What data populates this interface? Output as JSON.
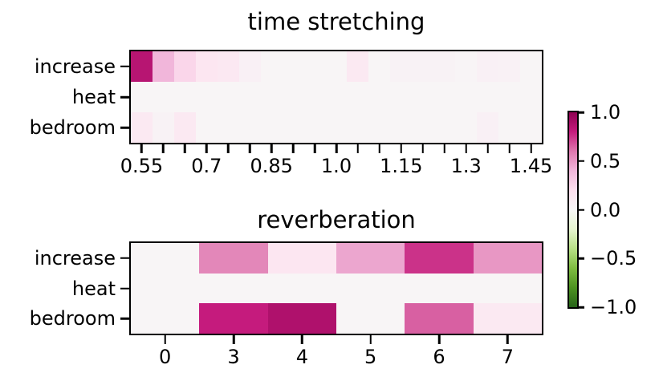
{
  "figure": {
    "background": "#ffffff"
  },
  "colormap": {
    "name": "PiYG_r",
    "piyg_anchors": [
      "#8e0152",
      "#c51b7d",
      "#de77ae",
      "#f1b6da",
      "#fde0ef",
      "#f7f7f7",
      "#e6f5d0",
      "#b8e186",
      "#7fbc41",
      "#4d9221",
      "#276419"
    ]
  },
  "colorbar": {
    "vmin": -1.0,
    "vmax": 1.0,
    "tick_labels": [
      "1.0",
      "0.5",
      "0.0",
      "−0.5",
      "−1.0"
    ],
    "tick_values": [
      1.0,
      0.5,
      0.0,
      -0.5,
      -1.0
    ],
    "position": "right"
  },
  "chart_data": [
    {
      "type": "heatmap",
      "title": "time stretching",
      "row_labels": [
        "increase",
        "heat",
        "bedroom"
      ],
      "x_values": [
        0.55,
        0.6,
        0.65,
        0.7,
        0.75,
        0.8,
        0.85,
        0.9,
        0.95,
        1.0,
        1.05,
        1.1,
        1.15,
        1.2,
        1.25,
        1.3,
        1.35,
        1.4,
        1.45
      ],
      "x_tick_labels": [
        "0.55",
        "",
        "",
        "0.7",
        "",
        "",
        "0.85",
        "",
        "",
        "1.0",
        "",
        "",
        "1.15",
        "",
        "",
        "1.3",
        "",
        "",
        "1.45"
      ],
      "vmin": -1.0,
      "vmax": 1.0,
      "grid": false,
      "series": [
        {
          "name": "increase",
          "values": [
            0.85,
            0.4,
            0.25,
            0.15,
            0.13,
            0.06,
            0.02,
            0.02,
            0.02,
            0.02,
            0.12,
            0.02,
            0.04,
            0.04,
            0.04,
            0.03,
            0.06,
            0.05,
            0.02
          ]
        },
        {
          "name": "heat",
          "values": [
            0.02,
            0.02,
            0.02,
            0.02,
            0.02,
            0.02,
            0.02,
            0.02,
            0.02,
            0.02,
            0.02,
            0.02,
            0.02,
            0.02,
            0.02,
            0.02,
            0.02,
            0.02,
            0.02
          ]
        },
        {
          "name": "bedroom",
          "values": [
            0.12,
            0.04,
            0.12,
            0.02,
            0.02,
            0.02,
            0.02,
            0.02,
            0.02,
            0.02,
            0.02,
            0.02,
            0.02,
            0.02,
            0.02,
            0.02,
            0.06,
            0.02,
            0.02
          ]
        }
      ]
    },
    {
      "type": "heatmap",
      "title": "reverberation",
      "row_labels": [
        "increase",
        "heat",
        "bedroom"
      ],
      "x_values": [
        0,
        3,
        4,
        5,
        6,
        7
      ],
      "x_tick_labels": [
        "0",
        "3",
        "4",
        "5",
        "6",
        "7"
      ],
      "vmin": -1.0,
      "vmax": 1.0,
      "grid": false,
      "series": [
        {
          "name": "increase",
          "values": [
            0.02,
            0.55,
            0.15,
            0.45,
            0.75,
            0.5
          ]
        },
        {
          "name": "heat",
          "values": [
            0.02,
            0.02,
            0.02,
            0.02,
            0.02,
            0.02
          ]
        },
        {
          "name": "bedroom",
          "values": [
            0.02,
            0.8,
            0.88,
            0.02,
            0.65,
            0.12
          ]
        }
      ]
    }
  ]
}
